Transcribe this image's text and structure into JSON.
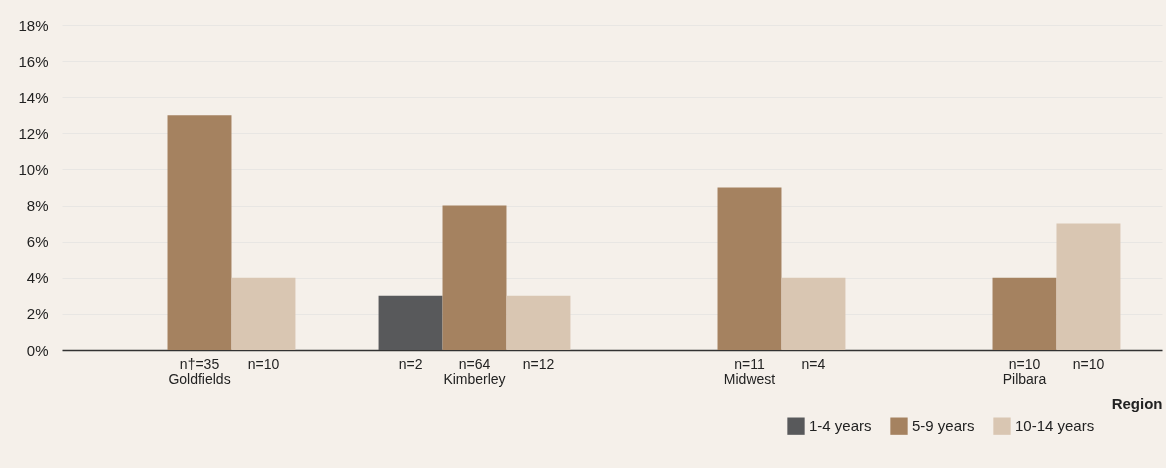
{
  "chart_data": {
    "type": "bar",
    "xlabel": "Region",
    "categories": [
      "Goldfields",
      "Kimberley",
      "Midwest",
      "Pilbara"
    ],
    "series": [
      {
        "name": "1-4 years",
        "color": "#58595b",
        "values": [
          null,
          3,
          null,
          null
        ]
      },
      {
        "name": "5-9 years",
        "color": "#a58260",
        "values": [
          13,
          8,
          9,
          4
        ]
      },
      {
        "name": "10-14 years",
        "color": "#d9c6b2",
        "values": [
          4,
          3,
          4,
          7
        ]
      }
    ],
    "ylim": [
      0,
      18
    ],
    "yticks": [
      {
        "value": 0,
        "label": "0%"
      },
      {
        "value": 2,
        "label": "2%"
      },
      {
        "value": 4,
        "label": "4%"
      },
      {
        "value": 6,
        "label": "6%"
      },
      {
        "value": 8,
        "label": "8%"
      },
      {
        "value": 10,
        "label": "10%"
      },
      {
        "value": 12,
        "label": "12%"
      },
      {
        "value": 14,
        "label": "14%"
      },
      {
        "value": 16,
        "label": "16%"
      },
      {
        "value": 18,
        "label": "18%"
      }
    ],
    "grid": "y",
    "legend": "bottom right",
    "annotations": [
      "n†=35",
      "n=10",
      "n=2",
      "n=64",
      "n=12",
      "n=11",
      "n=4",
      "n=10",
      "n=10"
    ]
  }
}
